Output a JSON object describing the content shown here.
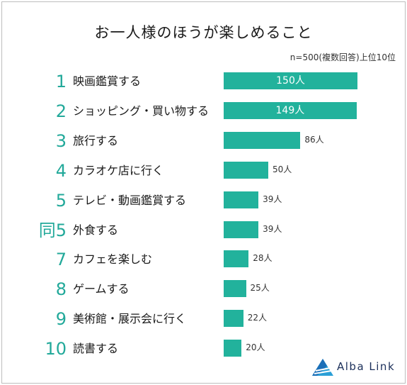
{
  "chart_data": {
    "type": "bar",
    "title": "お一人様のほうが楽しめること",
    "note": "n=500(複数回答)上位10位",
    "xlim": [
      0,
      150
    ],
    "unit": "人",
    "bar_color": "#22b29c",
    "rank_color": "#22a99a",
    "rows": [
      {
        "rank": "1",
        "label": "映画鑑賞する",
        "value": 150,
        "value_label": "150人"
      },
      {
        "rank": "2",
        "label": "ショッピング・買い物する",
        "value": 149,
        "value_label": "149人"
      },
      {
        "rank": "3",
        "label": "旅行する",
        "value": 86,
        "value_label": "86人"
      },
      {
        "rank": "4",
        "label": "カラオケ店に行く",
        "value": 50,
        "value_label": "50人"
      },
      {
        "rank": "5",
        "label": "テレビ・動画鑑賞する",
        "value": 39,
        "value_label": "39人"
      },
      {
        "rank": "同5",
        "label": "外食する",
        "value": 39,
        "value_label": "39人"
      },
      {
        "rank": "7",
        "label": "カフェを楽しむ",
        "value": 28,
        "value_label": "28人"
      },
      {
        "rank": "8",
        "label": "ゲームする",
        "value": 25,
        "value_label": "25人"
      },
      {
        "rank": "9",
        "label": "美術館・展示会に行く",
        "value": 22,
        "value_label": "22人"
      },
      {
        "rank": "10",
        "label": "読書する",
        "value": 20,
        "value_label": "20人"
      }
    ]
  },
  "brand": {
    "name": "Alba Link",
    "icon": "alba-link-logo-icon"
  }
}
